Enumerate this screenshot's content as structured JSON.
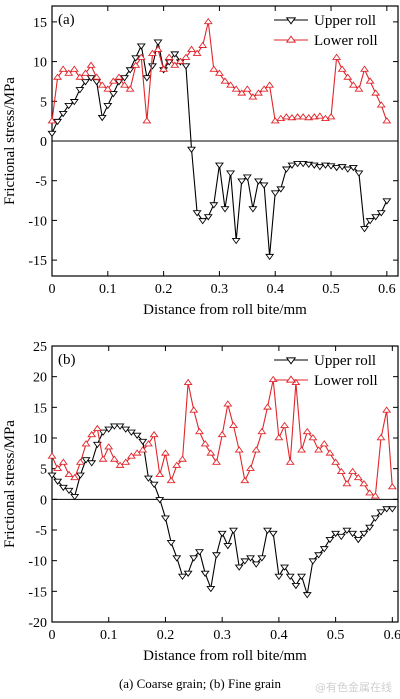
{
  "caption": "(a) Coarse grain; (b) Fine grain",
  "watermark": "@有色金属在线",
  "colors": {
    "upper": "#000000",
    "lower": "#e0262b",
    "axis": "#000000"
  },
  "chart_data": [
    {
      "type": "line",
      "panel_label": "(a)",
      "xlabel": "Distance from roll bite/mm",
      "ylabel": "Frictional stress/MPa",
      "xlim": [
        0,
        0.62
      ],
      "ylim": [
        -17,
        17
      ],
      "xticks": [
        0,
        0.1,
        0.2,
        0.3,
        0.4,
        0.5,
        0.6
      ],
      "yticks": [
        -15,
        -10,
        -5,
        0,
        5,
        10,
        15
      ],
      "grid": false,
      "legend_position": "top-right",
      "series": [
        {
          "name": "Upper roll",
          "marker": "triangle-down",
          "color_key": "upper",
          "x": [
            0.0,
            0.01,
            0.02,
            0.03,
            0.04,
            0.05,
            0.06,
            0.07,
            0.08,
            0.09,
            0.1,
            0.11,
            0.12,
            0.13,
            0.14,
            0.15,
            0.16,
            0.17,
            0.18,
            0.19,
            0.2,
            0.21,
            0.22,
            0.23,
            0.24,
            0.25,
            0.26,
            0.27,
            0.28,
            0.29,
            0.3,
            0.31,
            0.32,
            0.33,
            0.34,
            0.35,
            0.36,
            0.37,
            0.38,
            0.39,
            0.4,
            0.41,
            0.42,
            0.43,
            0.44,
            0.45,
            0.46,
            0.47,
            0.48,
            0.49,
            0.5,
            0.51,
            0.52,
            0.53,
            0.54,
            0.55,
            0.56,
            0.57,
            0.58,
            0.59,
            0.6
          ],
          "y": [
            1.0,
            2.5,
            3.5,
            4.5,
            5.0,
            6.5,
            7.5,
            8.0,
            7.5,
            3.0,
            4.5,
            6.0,
            7.5,
            8.0,
            9.0,
            10.5,
            12.0,
            8.0,
            9.5,
            12.5,
            9.0,
            10.0,
            11.0,
            10.0,
            9.5,
            -1.0,
            -9.0,
            -10.0,
            -9.5,
            -8.0,
            -3.0,
            -8.5,
            -4.0,
            -12.5,
            -5.0,
            -4.5,
            -8.5,
            -5.0,
            -5.5,
            -14.5,
            -6.5,
            -6.0,
            -3.5,
            -3.0,
            -2.8,
            -2.8,
            -2.9,
            -3.0,
            -3.2,
            -3.0,
            -3.1,
            -3.3,
            -3.2,
            -3.5,
            -3.3,
            -4.0,
            -11.0,
            -10.0,
            -9.5,
            -9.0,
            -7.5
          ]
        },
        {
          "name": "Lower roll",
          "marker": "triangle-up",
          "color_key": "lower",
          "x": [
            0.0,
            0.01,
            0.02,
            0.03,
            0.04,
            0.05,
            0.06,
            0.07,
            0.08,
            0.09,
            0.1,
            0.11,
            0.12,
            0.13,
            0.14,
            0.15,
            0.16,
            0.17,
            0.18,
            0.19,
            0.2,
            0.21,
            0.22,
            0.23,
            0.24,
            0.25,
            0.26,
            0.27,
            0.28,
            0.29,
            0.3,
            0.31,
            0.32,
            0.33,
            0.34,
            0.35,
            0.36,
            0.37,
            0.38,
            0.39,
            0.4,
            0.41,
            0.42,
            0.43,
            0.44,
            0.45,
            0.46,
            0.47,
            0.48,
            0.49,
            0.5,
            0.51,
            0.52,
            0.53,
            0.54,
            0.55,
            0.56,
            0.57,
            0.58,
            0.59,
            0.6
          ],
          "y": [
            2.5,
            8.0,
            9.0,
            8.5,
            9.0,
            8.0,
            8.5,
            9.5,
            8.0,
            7.0,
            6.5,
            7.5,
            8.0,
            7.0,
            6.5,
            9.5,
            10.5,
            2.5,
            11.0,
            11.5,
            9.0,
            10.5,
            9.5,
            10.0,
            10.5,
            11.5,
            11.0,
            12.0,
            15.0,
            9.0,
            8.5,
            7.5,
            7.0,
            6.5,
            6.0,
            6.5,
            5.5,
            6.0,
            6.5,
            7.0,
            2.5,
            2.8,
            3.0,
            2.9,
            3.0,
            3.0,
            2.9,
            3.0,
            3.1,
            2.8,
            3.0,
            10.5,
            9.0,
            8.0,
            7.0,
            6.5,
            9.0,
            7.5,
            6.0,
            4.5,
            2.5
          ]
        }
      ]
    },
    {
      "type": "line",
      "panel_label": "(b)",
      "xlabel": "Distance from roll bite/mm",
      "ylabel": "Frictional stress/MPa",
      "xlim": [
        0,
        0.61
      ],
      "ylim": [
        -20,
        25
      ],
      "xticks": [
        0,
        0.1,
        0.2,
        0.3,
        0.4,
        0.5,
        0.6
      ],
      "yticks": [
        -20,
        -15,
        -10,
        -5,
        0,
        5,
        10,
        15,
        20,
        25
      ],
      "grid": false,
      "legend_position": "top-right",
      "series": [
        {
          "name": "Upper roll",
          "marker": "triangle-down",
          "color_key": "upper",
          "x": [
            0.0,
            0.01,
            0.02,
            0.03,
            0.04,
            0.05,
            0.06,
            0.07,
            0.08,
            0.09,
            0.1,
            0.11,
            0.12,
            0.13,
            0.14,
            0.15,
            0.16,
            0.17,
            0.18,
            0.19,
            0.2,
            0.21,
            0.22,
            0.23,
            0.24,
            0.25,
            0.26,
            0.27,
            0.28,
            0.29,
            0.3,
            0.31,
            0.32,
            0.33,
            0.34,
            0.35,
            0.36,
            0.37,
            0.38,
            0.39,
            0.4,
            0.41,
            0.42,
            0.43,
            0.44,
            0.45,
            0.46,
            0.47,
            0.48,
            0.49,
            0.5,
            0.51,
            0.52,
            0.53,
            0.54,
            0.55,
            0.56,
            0.57,
            0.58,
            0.59,
            0.6
          ],
          "y": [
            4.0,
            3.0,
            2.0,
            1.5,
            0.5,
            4.0,
            6.5,
            6.0,
            9.0,
            11.0,
            11.5,
            12.0,
            12.0,
            11.5,
            11.0,
            10.5,
            9.5,
            3.5,
            2.5,
            0.0,
            -3.0,
            -7.0,
            -9.5,
            -12.5,
            -12.0,
            -9.5,
            -8.5,
            -12.0,
            -14.5,
            -9.0,
            -5.5,
            -7.5,
            -5.0,
            -11.0,
            -10.0,
            -9.5,
            -10.5,
            -9.5,
            -5.0,
            -5.5,
            -12.5,
            -11.0,
            -12.5,
            -14.0,
            -12.5,
            -15.5,
            -10.0,
            -9.0,
            -8.0,
            -6.5,
            -5.5,
            -6.0,
            -5.0,
            -5.5,
            -6.5,
            -5.5,
            -4.5,
            -3.0,
            -2.0,
            -1.5,
            -1.5
          ]
        },
        {
          "name": "Lower roll",
          "marker": "triangle-up",
          "color_key": "lower",
          "x": [
            0.0,
            0.01,
            0.02,
            0.03,
            0.04,
            0.05,
            0.06,
            0.07,
            0.08,
            0.09,
            0.1,
            0.11,
            0.12,
            0.13,
            0.14,
            0.15,
            0.16,
            0.17,
            0.18,
            0.19,
            0.2,
            0.21,
            0.22,
            0.23,
            0.24,
            0.25,
            0.26,
            0.27,
            0.28,
            0.29,
            0.3,
            0.31,
            0.32,
            0.33,
            0.34,
            0.35,
            0.36,
            0.37,
            0.38,
            0.39,
            0.4,
            0.41,
            0.42,
            0.43,
            0.44,
            0.45,
            0.46,
            0.47,
            0.48,
            0.49,
            0.5,
            0.51,
            0.52,
            0.53,
            0.54,
            0.55,
            0.56,
            0.57,
            0.58,
            0.59,
            0.6
          ],
          "y": [
            7.0,
            5.0,
            6.0,
            4.0,
            3.5,
            6.0,
            9.0,
            10.5,
            11.5,
            6.5,
            8.5,
            6.5,
            5.5,
            6.0,
            7.0,
            7.5,
            8.0,
            9.0,
            10.5,
            4.0,
            7.5,
            3.0,
            5.5,
            6.5,
            19.0,
            14.5,
            11.0,
            9.0,
            7.5,
            6.0,
            10.5,
            15.5,
            12.0,
            8.0,
            3.0,
            5.0,
            8.0,
            11.0,
            15.0,
            19.5,
            10.0,
            12.0,
            6.0,
            19.0,
            8.0,
            11.0,
            10.0,
            8.0,
            9.0,
            7.5,
            6.0,
            4.5,
            2.5,
            4.5,
            3.5,
            2.5,
            1.0,
            0.5,
            10.0,
            14.5,
            2.0
          ]
        }
      ]
    }
  ]
}
